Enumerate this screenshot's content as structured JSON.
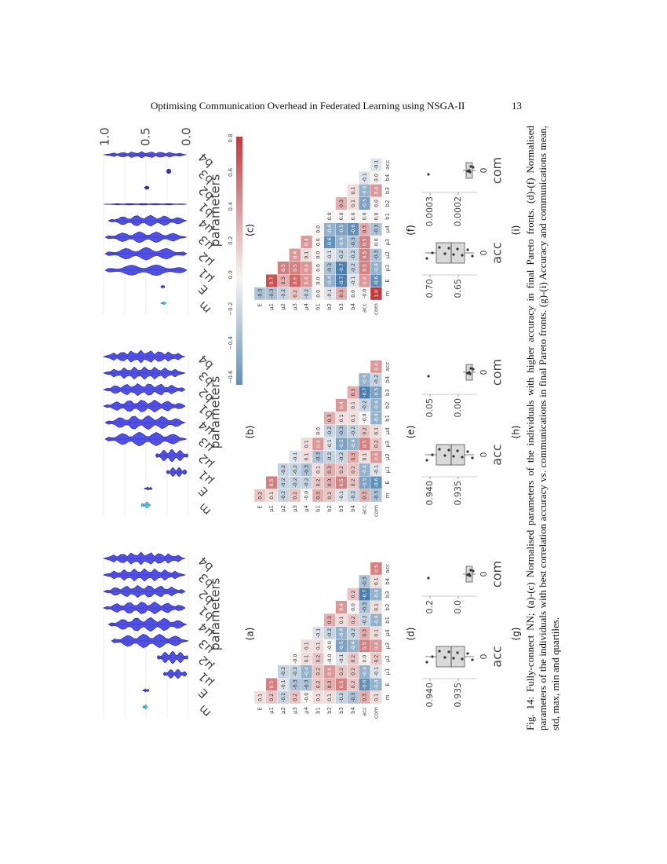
{
  "header": {
    "title": "Optimising Communication Overhead in Federated Learning using NSGA-II",
    "page": "13"
  },
  "violins": [
    {
      "label": "(a)",
      "xlabel": "parameters",
      "xticks": [
        "m",
        "E",
        "μ1",
        "μ2",
        "μ3",
        "μ4",
        "b1",
        "b2",
        "b3",
        "b4"
      ],
      "yticks": []
    },
    {
      "label": "(b)",
      "xlabel": "parameters",
      "xticks": [
        "m",
        "E",
        "μ1",
        "μ2",
        "μ3",
        "μ4",
        "b1",
        "b2",
        "b3",
        "b4"
      ],
      "yticks": []
    },
    {
      "label": "(c)",
      "xlabel": "parameters",
      "xticks": [
        "m",
        "E",
        "μ1",
        "μ2",
        "μ3",
        "μ4",
        "b1",
        "b2",
        "b3",
        "b4"
      ],
      "yticks": [
        "1.0",
        "0.5",
        "0.0"
      ]
    }
  ],
  "heatmaps": [
    {
      "label": "(d)",
      "rows": [
        "m",
        "E",
        "μ1",
        "μ2",
        "μ3",
        "μ4",
        "b1",
        "b2",
        "b3",
        "b4",
        "acc",
        "com"
      ],
      "cols": [
        "m",
        "E",
        "μ1",
        "μ2",
        "μ3",
        "μ4",
        "b1",
        "b2",
        "b3",
        "b4",
        "acc",
        "com"
      ],
      "cells": [
        [],
        [
          "0.1"
        ],
        [
          "0.2",
          "0.5"
        ],
        [
          "-0.2",
          "-0.1",
          "-0.2"
        ],
        [
          "0.2",
          "-0.3",
          "-0.2",
          "-0.0"
        ],
        [
          "-0.0",
          "-0.3",
          "-0.4",
          "0.1",
          "0.1"
        ],
        [
          "0.1",
          "0.2",
          "0.2",
          "0.2",
          "0.1",
          "-0.1"
        ],
        [
          "0.1",
          "0.3",
          "0.4",
          "-0.0",
          "-0.0",
          "-0.2",
          "0.3"
        ],
        [
          "-0.2",
          "0.5",
          "0.2",
          "-0.1",
          "-0.5",
          "-0.4",
          "0.1",
          "0.4"
        ],
        [
          "-0.3",
          "0.2",
          "0.2",
          "0.2",
          "-0.4",
          "-0.2",
          "0.2",
          "0.0",
          "0.2"
        ],
        [
          "0.3",
          "-0.6",
          "-0.4",
          "0.0",
          "0.5",
          "0.3",
          "-0.2",
          "-0.3",
          "-0.7",
          "-0.3"
        ],
        [
          "0.1",
          "-0.4",
          "-0.1",
          "0.2",
          "0.4",
          "0.1",
          "-0.4",
          "0.1",
          "-0.4",
          "0.1",
          "0.5"
        ]
      ]
    },
    {
      "label": "(e)",
      "rows": [
        "m",
        "E",
        "μ1",
        "μ2",
        "μ3",
        "μ4",
        "b1",
        "b2",
        "b3",
        "b4",
        "acc",
        "com"
      ],
      "cols": [
        "m",
        "E",
        "μ1",
        "μ2",
        "μ3",
        "μ4",
        "b1",
        "b2",
        "b3",
        "b4",
        "acc",
        "com"
      ],
      "cells": [
        [],
        [
          "0.2"
        ],
        [
          "0.1",
          "0.5"
        ],
        [
          "-0.2",
          "-0.2",
          "-0.2"
        ],
        [
          "0.2",
          "-0.2",
          "-0.2",
          "-0.1"
        ],
        [
          "-0.0",
          "-0.2",
          "-0.3",
          "0.1",
          "0.1"
        ],
        [
          "0.3",
          "0.2",
          "0.1",
          "-0.3",
          "0.4",
          "0.0"
        ],
        [
          "0.2",
          "0.3",
          "0.3",
          "-0.2",
          "-0.1",
          "-0.2",
          "0.3"
        ],
        [
          "-0.1",
          "0.5",
          "0.2",
          "-0.2",
          "-0.5",
          "-0.3",
          "0.1",
          "0.4"
        ],
        [
          "-0.2",
          "0.2",
          "0.2",
          "0.3",
          "-0.4",
          "-0.2",
          "0.1",
          "0.1",
          "0.3"
        ],
        [
          "0.3",
          "-0.5",
          "-0.4",
          "0.1",
          "0.5",
          "0.2",
          "-0.0",
          "-0.2",
          "-0.7",
          "-0.4"
        ],
        [
          "-0.3",
          "-0.6",
          "-0.1",
          "0.4",
          "0.2",
          "0.1",
          "-0.4",
          "-0.4",
          "-0.5",
          "-0.2",
          "0.4"
        ]
      ]
    },
    {
      "label": "(f)",
      "rows": [
        "m",
        "E",
        "μ1",
        "μ2",
        "μ3",
        "μ4",
        "b1",
        "b2",
        "b3",
        "b4",
        "acc",
        "com"
      ],
      "cols": [
        "m",
        "E",
        "μ1",
        "μ2",
        "μ3",
        "μ4",
        "b1",
        "b2",
        "b3",
        "b4",
        "acc",
        "com"
      ],
      "cells": [
        [],
        [
          "-0.3"
        ],
        [
          "-0.3",
          "0.7"
        ],
        [
          "-0.2",
          "0.3",
          "0.5"
        ],
        [
          "0.2",
          "0.6",
          "0.5",
          "0.4"
        ],
        [
          "-0.2",
          "0.4",
          "0.4",
          "0.1",
          "0.4"
        ],
        [
          "0.0",
          "0.0",
          "0.0",
          "0.0",
          "0.0",
          "0.0"
        ],
        [
          "-0.1",
          "-0.4",
          "-0.3",
          "-0.1",
          "-0.6",
          "-0.4",
          "0.0"
        ],
        [
          "0.3",
          "-0.7",
          "-0.7",
          "-0.2",
          "-0.4",
          "-0.5",
          "0.0",
          "0.3"
        ],
        [
          "0.0",
          "-0.1",
          "-0.2",
          "-0.2",
          "-0.3",
          "-0.6",
          "0.0",
          "0.1",
          "0.1"
        ],
        [
          "-0.0",
          "0.4",
          "0.5",
          "0.5",
          "0.5",
          "0.3",
          "0.0",
          "-0.5",
          "-0.4",
          "-0.1"
        ],
        [
          "1.0",
          "-0.6",
          "-0.4",
          "-0.3",
          "0.0",
          "-0.3",
          "0.0",
          "0.0",
          "0.4",
          "0.0",
          "-0.1"
        ]
      ]
    }
  ],
  "colorbar": {
    "ticks": [
      "0.8",
      "0.6",
      "0.4",
      "0.2",
      "0.0",
      "−0.2",
      "−0.4",
      "−0.6"
    ]
  },
  "boxplots": [
    {
      "label": "(g)",
      "subplots": [
        {
          "name": "acc",
          "xtick": "0",
          "yticks": [
            "0.940",
            "0.935"
          ]
        },
        {
          "name": "com",
          "xtick": "0",
          "yticks": [
            "0.2",
            "0.0"
          ]
        }
      ]
    },
    {
      "label": "(h)",
      "subplots": [
        {
          "name": "acc",
          "xtick": "0",
          "yticks": [
            "0.940",
            "0.935"
          ]
        },
        {
          "name": "com",
          "xtick": "0",
          "yticks": [
            "0.05",
            "0.00"
          ]
        }
      ]
    },
    {
      "label": "(i)",
      "subplots": [
        {
          "name": "acc",
          "xtick": "0",
          "yticks": [
            "0.70",
            "0.65"
          ]
        },
        {
          "name": "com",
          "xtick": "0",
          "yticks": [
            "0.0003",
            "0.0002"
          ]
        }
      ]
    }
  ],
  "caption": "Fig. 14: Fully-connect NN; (a)-(c) Normalised parameters of the individuals with higher accuracy in final Pareto fronts. (d)-(f) Normalised parameters of the individuals with best correlation accuracy vs. communications in final Pareto fronts. (g)-(i) Accuracy and communications mean, std, max, min and quartiles."
}
